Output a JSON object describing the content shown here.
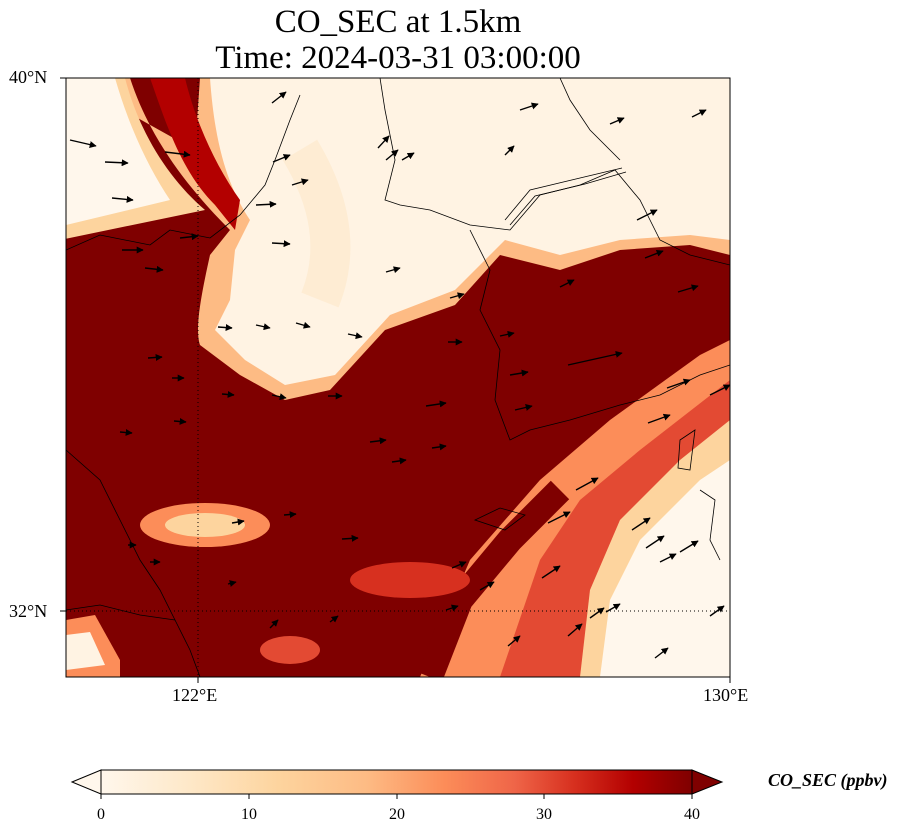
{
  "title": {
    "line1": "CO_SEC at 1.5km",
    "line2": "Time: 2024-03-31 03:00:00"
  },
  "map": {
    "lon_range": [
      120,
      130
    ],
    "lat_range": [
      31,
      40
    ],
    "y_ticks": [
      "40°N",
      "32°N"
    ],
    "x_ticks": [
      "122°E",
      "130°E"
    ],
    "gridlines": {
      "lon": 122,
      "lat": 32,
      "style": "dotted"
    },
    "colors": {
      "high": "#7f0000",
      "coast": "#000000"
    }
  },
  "colorbar": {
    "label": "CO_SEC (ppbv)",
    "ticks": [
      "0",
      "10",
      "20",
      "30",
      "40"
    ],
    "range": [
      0,
      40
    ],
    "colormap": "OrRd",
    "extend": "both"
  }
}
